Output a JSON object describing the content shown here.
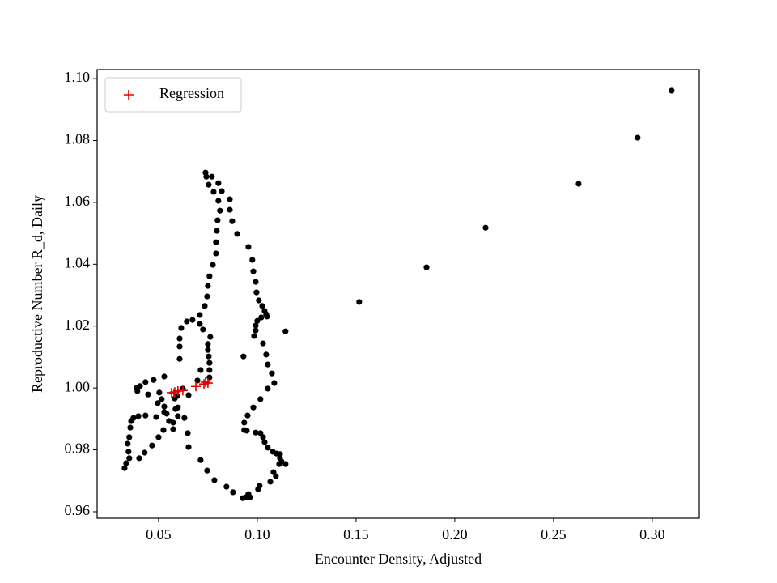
{
  "chart_data": {
    "type": "scatter",
    "x_label": "Encounter Density, Adjusted",
    "y_label": "Reproductive Number R_d, Daily",
    "xlim": [
      0.0189,
      0.3238
    ],
    "ylim": [
      0.9579,
      1.1029
    ],
    "xticks": [
      {
        "value": 0.05,
        "label": "0.05"
      },
      {
        "value": 0.1,
        "label": "0.10"
      },
      {
        "value": 0.15,
        "label": "0.15"
      },
      {
        "value": 0.2,
        "label": "0.20"
      },
      {
        "value": 0.25,
        "label": "0.25"
      },
      {
        "value": 0.3,
        "label": "0.30"
      }
    ],
    "yticks": [
      {
        "value": 0.96,
        "label": "0.96"
      },
      {
        "value": 0.98,
        "label": "0.98"
      },
      {
        "value": 1.0,
        "label": "1.00"
      },
      {
        "value": 1.02,
        "label": "1.02"
      },
      {
        "value": 1.04,
        "label": "1.04"
      },
      {
        "value": 1.06,
        "label": "1.06"
      },
      {
        "value": 1.08,
        "label": "1.08"
      },
      {
        "value": 1.1,
        "label": "1.10"
      }
    ],
    "legend": "upper left",
    "series": [
      {
        "color": "#000000",
        "marker": "dot",
        "x": [
          0.3098,
          0.2926,
          0.2627,
          0.2156,
          0.1857,
          0.1516,
          0.1143,
          0.0738,
          0.0742,
          0.077,
          0.0803,
          0.0754,
          0.0779,
          0.082,
          0.0861,
          0.0803,
          0.0861,
          0.0811,
          0.0873,
          0.0799,
          0.0898,
          0.0795,
          0.0791,
          0.0791,
          0.0775,
          0.0955,
          0.0975,
          0.098,
          0.0992,
          0.0996,
          0.1008,
          0.1025,
          0.1037,
          0.1049,
          0.1045,
          0.102,
          0.1,
          0.0992,
          0.0992,
          0.0984,
          0.093,
          0.1029,
          0.1045,
          0.1053,
          0.1074,
          0.1086,
          0.1053,
          0.1016,
          0.098,
          0.0951,
          0.0934,
          0.0934,
          0.0947,
          0.0992,
          0.1016,
          0.1029,
          0.1037,
          0.1053,
          0.1078,
          0.1098,
          0.1115,
          0.1115,
          0.1123,
          0.1143,
          0.1111,
          0.1082,
          0.1094,
          0.1066,
          0.1012,
          0.1004,
          0.0955,
          0.0943,
          0.0926,
          0.0963,
          0.0877,
          0.0844,
          0.0783,
          0.0746,
          0.0713,
          0.0652,
          0.0648,
          0.0631,
          0.0652,
          0.0623,
          0.0594,
          0.0586,
          0.0598,
          0.0574,
          0.0553,
          0.0541,
          0.0529,
          0.0516,
          0.0504,
          0.0529,
          0.0475,
          0.0434,
          0.0406,
          0.0389,
          0.0393,
          0.0447,
          0.0496,
          0.0529,
          0.0488,
          0.0434,
          0.0398,
          0.0373,
          0.0361,
          0.0357,
          0.0352,
          0.0344,
          0.0348,
          0.0352,
          0.0336,
          0.0328,
          0.0402,
          0.043,
          0.0467,
          0.05,
          0.0525,
          0.0574,
          0.0598,
          0.0582,
          0.0697,
          0.0713,
          0.0758,
          0.0758,
          0.0758,
          0.0754,
          0.075,
          0.075,
          0.0762,
          0.0725,
          0.0709,
          0.0672,
          0.0643,
          0.0615,
          0.0607,
          0.0607,
          0.0607,
          0.0709,
          0.0734,
          0.0746,
          0.075,
          0.0758
        ],
        "values": [
          1.0961,
          1.0809,
          1.066,
          1.0518,
          1.039,
          1.0278,
          1.0183,
          1.0696,
          1.0683,
          1.0683,
          1.0662,
          1.0657,
          1.0634,
          1.0636,
          1.061,
          1.0605,
          1.0576,
          1.0573,
          1.0539,
          1.0542,
          1.0498,
          1.0508,
          1.0471,
          1.0435,
          1.0398,
          1.0456,
          1.0414,
          1.0377,
          1.0343,
          1.0309,
          1.0283,
          1.0265,
          1.0249,
          1.0231,
          1.0238,
          1.0228,
          1.0217,
          1.0202,
          1.0186,
          1.0168,
          1.0102,
          1.0144,
          1.0108,
          1.0076,
          1.0047,
          1.0016,
          0.9998,
          0.9964,
          0.9937,
          0.9911,
          0.9888,
          0.9864,
          0.9862,
          0.9856,
          0.9854,
          0.9841,
          0.9825,
          0.9807,
          0.9794,
          0.9788,
          0.9786,
          0.9773,
          0.9762,
          0.9754,
          0.9754,
          0.9728,
          0.9715,
          0.9697,
          0.9684,
          0.9673,
          0.9657,
          0.9647,
          0.9644,
          0.9647,
          0.9663,
          0.9681,
          0.9702,
          0.9733,
          0.9767,
          0.9809,
          0.9854,
          0.9903,
          0.9977,
          0.9998,
          0.9974,
          0.9932,
          0.9909,
          0.9888,
          0.9893,
          0.9917,
          0.994,
          0.9964,
          0.9985,
          1.0037,
          1.0026,
          1.0019,
          1.0006,
          1.0,
          0.999,
          0.9979,
          0.9951,
          0.9922,
          0.9906,
          0.9911,
          0.9909,
          0.9903,
          0.9893,
          0.9872,
          0.9841,
          0.982,
          0.9794,
          0.9773,
          0.9757,
          0.9741,
          0.9773,
          0.9791,
          0.9814,
          0.9841,
          0.9864,
          0.9867,
          0.9937,
          0.9966,
          1.0024,
          1.0058,
          1.0034,
          1.0058,
          1.0081,
          1.0102,
          1.0123,
          1.0142,
          1.0165,
          1.0189,
          1.0207,
          1.022,
          1.0215,
          1.0194,
          1.016,
          1.0134,
          1.0094,
          1.0236,
          1.0265,
          1.0296,
          1.033,
          1.0361
        ]
      },
      {
        "name": "Regression",
        "color": "#e00000",
        "marker": "plus",
        "x": [
          0.0566,
          0.0582,
          0.0598,
          0.0623,
          0.0689,
          0.073,
          0.075,
          0.0738,
          0.0578
        ],
        "values": [
          0.9985,
          0.9987,
          0.999,
          0.9992,
          1.0005,
          1.0013,
          1.0016,
          1.0019,
          0.9982
        ]
      }
    ]
  }
}
